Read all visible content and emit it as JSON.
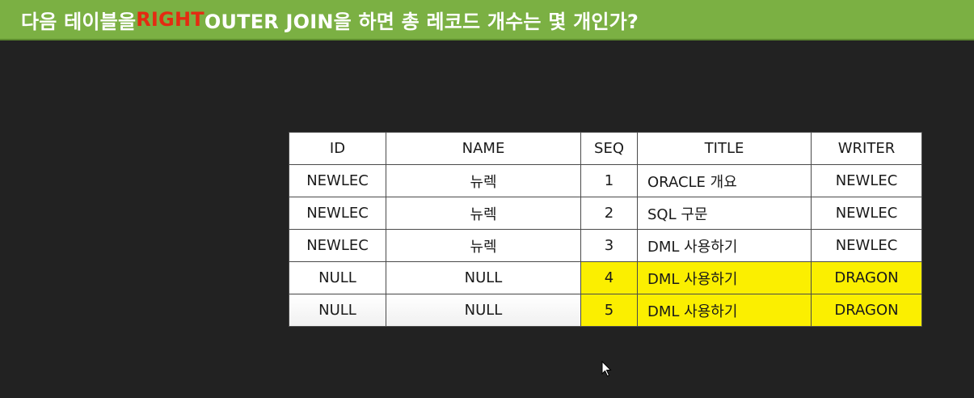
{
  "title": {
    "prefix": "다음 테이블을 ",
    "highlight": "RIGHT",
    "suffix": " OUTER JOIN을 하면 총 레코드 개수는 몇 개인가?"
  },
  "colors": {
    "title_bar": "#7bb043",
    "highlight": "#e42b12",
    "background": "#222222",
    "row_highlight": "#fbef00"
  },
  "member_table": {
    "headers": [
      "ID",
      "NAME"
    ],
    "rows": [
      [
        "NEWLEC",
        "뉴렉"
      ],
      [
        "NEWLEC",
        "뉴렉"
      ],
      [
        "NEWLEC",
        "뉴렉"
      ],
      [
        "NULL",
        "NULL"
      ],
      [
        "NULL",
        "NULL"
      ]
    ]
  },
  "notice_table": {
    "headers": [
      "SEQ",
      "TITLE",
      "WRITER"
    ],
    "rows": [
      [
        "1",
        "ORACLE 개요",
        "NEWLEC"
      ],
      [
        "2",
        "SQL 구문",
        "NEWLEC"
      ],
      [
        "3",
        "DML 사용하기",
        "NEWLEC"
      ],
      [
        "4",
        "DML 사용하기",
        "DRAGON"
      ],
      [
        "5",
        "DML 사용하기",
        "DRAGON"
      ]
    ]
  },
  "cursor_icon": "mouse-pointer-icon"
}
